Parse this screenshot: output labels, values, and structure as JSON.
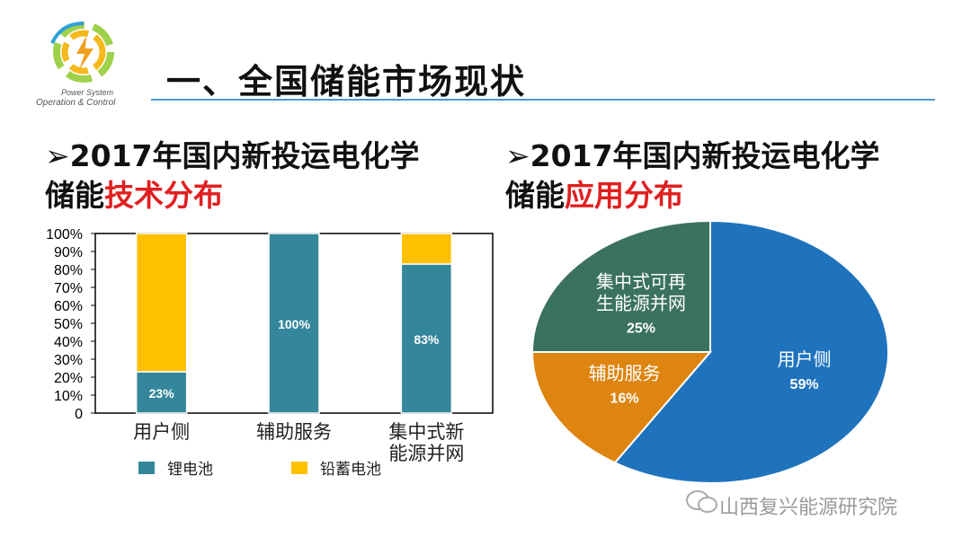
{
  "logo": {
    "line1": "Power System",
    "line2": "Operation & Control"
  },
  "header": {
    "title": "一、全国储能市场现状"
  },
  "left_subtitle": {
    "bullet": "➢",
    "line1": "2017年国内新投运电化学",
    "prefix": "储能",
    "accent": "技术分布"
  },
  "right_subtitle": {
    "bullet": "➢",
    "line1": "2017年国内新投运电化学",
    "prefix": "储能",
    "accent": "应用分布"
  },
  "colors": {
    "lithium": "#34879b",
    "lead": "#ffc000",
    "pie_user": "#1f73bd",
    "pie_aux": "#de8410",
    "pie_renew": "#3a725e",
    "accent_red": "#e02020"
  },
  "chart_data": [
    {
      "type": "bar",
      "stacked": true,
      "title": "",
      "categories": [
        "用户侧",
        "辅助服务",
        "集中式新能源并网"
      ],
      "category_lines": [
        [
          "用户侧"
        ],
        [
          "辅助服务"
        ],
        [
          "集中式新",
          "能源并网"
        ]
      ],
      "series": [
        {
          "name": "锂电池",
          "values": [
            23,
            100,
            83
          ],
          "labels": [
            "23%",
            "100%",
            "83%"
          ]
        },
        {
          "name": "铅蓄电池",
          "values": [
            77,
            0,
            17
          ]
        }
      ],
      "ylim": [
        0,
        100
      ],
      "yticks": [
        "0",
        "10%",
        "20%",
        "30%",
        "40%",
        "50%",
        "60%",
        "70%",
        "80%",
        "90%",
        "100%"
      ],
      "legend_position": "bottom",
      "grid": false
    },
    {
      "type": "pie",
      "title": "",
      "slices": [
        {
          "name": "用户侧",
          "lines": [
            "用户侧"
          ],
          "value": 59,
          "label": "59%"
        },
        {
          "name": "辅助服务",
          "lines": [
            "辅助服务"
          ],
          "value": 16,
          "label": "16%"
        },
        {
          "name": "集中式可再生能源并网",
          "lines": [
            "集中式可再",
            "生能源并网"
          ],
          "value": 25,
          "label": "25%"
        }
      ]
    }
  ],
  "watermark": {
    "text": "山西复兴能源研究院"
  }
}
